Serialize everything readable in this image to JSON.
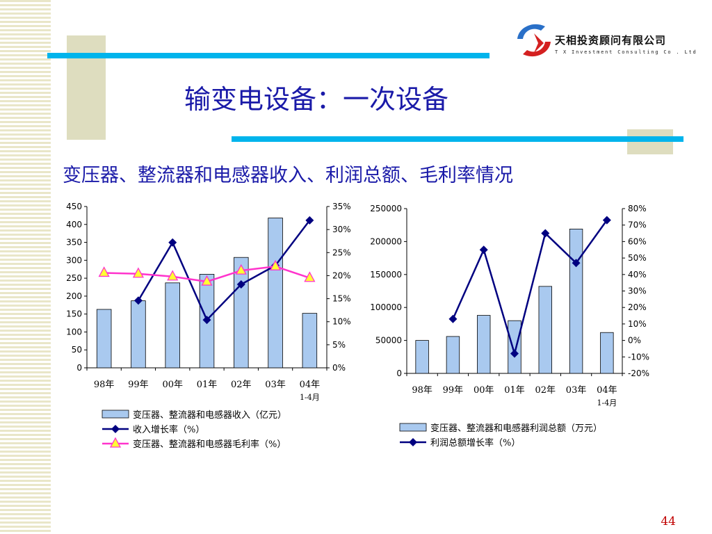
{
  "slide": {
    "title": "输变电设备：一次设备",
    "subtitle": "变压器、整流器和电感器收入、利润总额、毛利率情况",
    "page_number": "44",
    "colors": {
      "title": "#1a1aa8",
      "accent_line": "#00b4ec",
      "deco": "#deddbf",
      "page_number": "#c00000"
    }
  },
  "logo": {
    "name_cn": "天相投资顾问有限公司",
    "name_en": "T X  Investment  Consulting  Co . Ltd"
  },
  "chart_data": [
    {
      "type": "bar",
      "categories": [
        "98年",
        "99年",
        "00年",
        "01年",
        "02年",
        "03年",
        "04年\n1-4月"
      ],
      "ylim": [
        0,
        450
      ],
      "y_ticks": [
        "0",
        "50",
        "100",
        "150",
        "200",
        "250",
        "300",
        "350",
        "400",
        "450"
      ],
      "y2lim": [
        0,
        35
      ],
      "y2_ticks": [
        "0%",
        "5%",
        "10%",
        "15%",
        "20%",
        "25%",
        "30%",
        "35%"
      ],
      "series": [
        {
          "name": "变压器、整流器和电感器收入（亿元）",
          "kind": "bar",
          "axis": "left",
          "color": "#a9c9ef",
          "values": [
            163,
            187,
            237,
            261,
            308,
            418,
            152
          ]
        },
        {
          "name": "收入增长率（%）",
          "kind": "line",
          "axis": "right",
          "color": "#000080",
          "marker": "diamond",
          "values": [
            null,
            14.6,
            27.2,
            10.4,
            18.1,
            22.2,
            32.0
          ]
        },
        {
          "name": "变压器、整流器和电感器毛利率（%）",
          "kind": "line",
          "axis": "right",
          "color": "#ff33cc",
          "marker": "triangle-yellow",
          "values": [
            20.6,
            20.4,
            19.8,
            18.7,
            21.1,
            22.0,
            19.5
          ]
        }
      ],
      "grid": false,
      "legend": "bottom"
    },
    {
      "type": "bar",
      "categories": [
        "98年",
        "99年",
        "00年",
        "01年",
        "02年",
        "03年",
        "04年\n1-4月"
      ],
      "ylim": [
        0,
        250000
      ],
      "y_ticks": [
        "0",
        "50000",
        "100000",
        "150000",
        "200000",
        "250000"
      ],
      "y2lim": [
        -20,
        80
      ],
      "y2_ticks": [
        "-20%",
        "-10%",
        "0%",
        "10%",
        "20%",
        "30%",
        "40%",
        "50%",
        "60%",
        "70%",
        "80%"
      ],
      "series": [
        {
          "name": "变压器、整流器和电感器利润总额（万元）",
          "kind": "bar",
          "axis": "left",
          "color": "#a9c9ef",
          "values": [
            50000,
            56000,
            88000,
            80000,
            132000,
            219000,
            62000
          ]
        },
        {
          "name": "利润总额增长率（%）",
          "kind": "line",
          "axis": "right",
          "color": "#000080",
          "marker": "diamond",
          "values": [
            null,
            13,
            55,
            -8,
            65,
            47,
            73
          ]
        }
      ],
      "grid": false,
      "legend": "bottom"
    }
  ]
}
